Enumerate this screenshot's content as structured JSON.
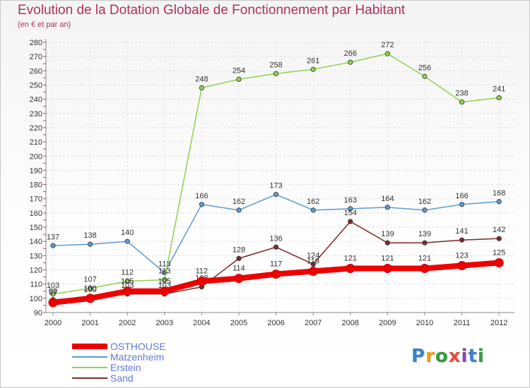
{
  "title": "Evolution de la Dotation Globale de Fonctionnement par Habitant",
  "subtitle": "(en € et par an)",
  "logo": {
    "text": "Proxiti",
    "letter_colors": [
      "#3b82c4",
      "#f39c12",
      "#2e9b3e",
      "#e74c3c",
      "#8e44ad",
      "#3b82c4",
      "#2e9b3e"
    ]
  },
  "chart_data": {
    "type": "line",
    "x": [
      "2000",
      "2001",
      "2002",
      "2003",
      "2004",
      "2005",
      "2006",
      "2007",
      "2008",
      "2009",
      "2010",
      "2011",
      "2012"
    ],
    "ylim": [
      90,
      280
    ],
    "yticks": [
      90,
      100,
      110,
      120,
      130,
      140,
      150,
      160,
      170,
      180,
      190,
      200,
      210,
      220,
      230,
      240,
      250,
      260,
      270,
      280
    ],
    "grid": true,
    "legend_position": "bottom-left",
    "series": [
      {
        "name": "OSTHOUSE",
        "color": "#ee0000",
        "emphasis": true,
        "values": [
          97,
          100,
          105,
          105,
          112,
          114,
          117,
          119,
          121,
          121,
          121,
          123,
          125
        ],
        "labels": [
          "97",
          "100",
          "105",
          "105",
          "112",
          "114",
          "117",
          "119",
          "121",
          "121",
          "121",
          "123",
          "125"
        ]
      },
      {
        "name": "Matzenheim",
        "color": "#5b9bd5",
        "emphasis": false,
        "values": [
          137,
          138,
          140,
          118,
          166,
          162,
          173,
          162,
          163,
          164,
          162,
          166,
          168
        ],
        "labels": [
          "137",
          "138",
          "140",
          "118",
          "166",
          "162",
          "173",
          "162",
          "163",
          "164",
          "162",
          "166",
          "168"
        ]
      },
      {
        "name": "Erstein",
        "color": "#8fd14f",
        "emphasis": false,
        "values": [
          103,
          107,
          112,
          113,
          248,
          254,
          258,
          261,
          266,
          272,
          256,
          238,
          241
        ],
        "labels": [
          "103",
          "107",
          "112",
          "113",
          "248",
          "254",
          "258",
          "261",
          "266",
          "272",
          "256",
          "238",
          "241"
        ]
      },
      {
        "name": "Sand",
        "color": "#7b2a2a",
        "emphasis": false,
        "values": [
          99,
          100,
          103,
          103,
          108,
          128,
          136,
          124,
          154,
          139,
          139,
          141,
          142
        ],
        "labels": [
          "99",
          "100",
          "103",
          "103",
          "108",
          "128",
          "136",
          "124",
          "154",
          "139",
          "139",
          "141",
          "142"
        ]
      }
    ]
  }
}
